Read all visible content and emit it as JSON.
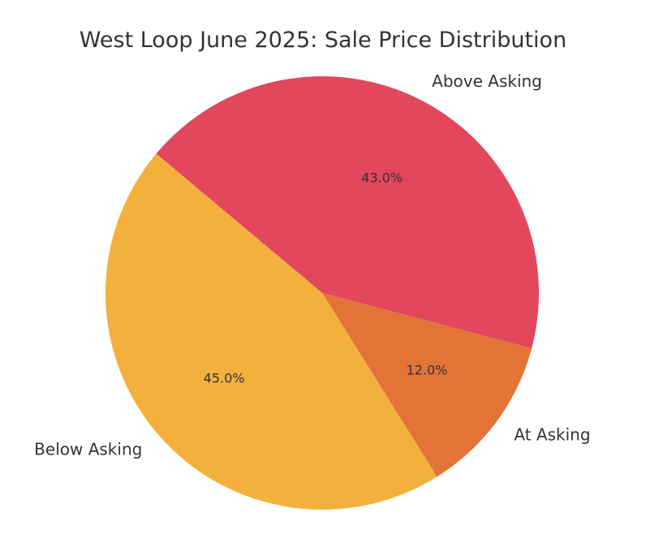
{
  "chart_data": {
    "type": "pie",
    "title": "West Loop June 2025: Sale Price Distribution",
    "slices": [
      {
        "label": "Above Asking",
        "value": 43.0,
        "pct_label": "43.0%",
        "color": "#e2475d"
      },
      {
        "label": "At Asking",
        "value": 12.0,
        "pct_label": "12.0%",
        "color": "#e47338"
      },
      {
        "label": "Below Asking",
        "value": 45.0,
        "pct_label": "45.0%",
        "color": "#f3b03d"
      }
    ],
    "start_angle_deg": 140,
    "direction": "clockwise",
    "legend": "none"
  }
}
